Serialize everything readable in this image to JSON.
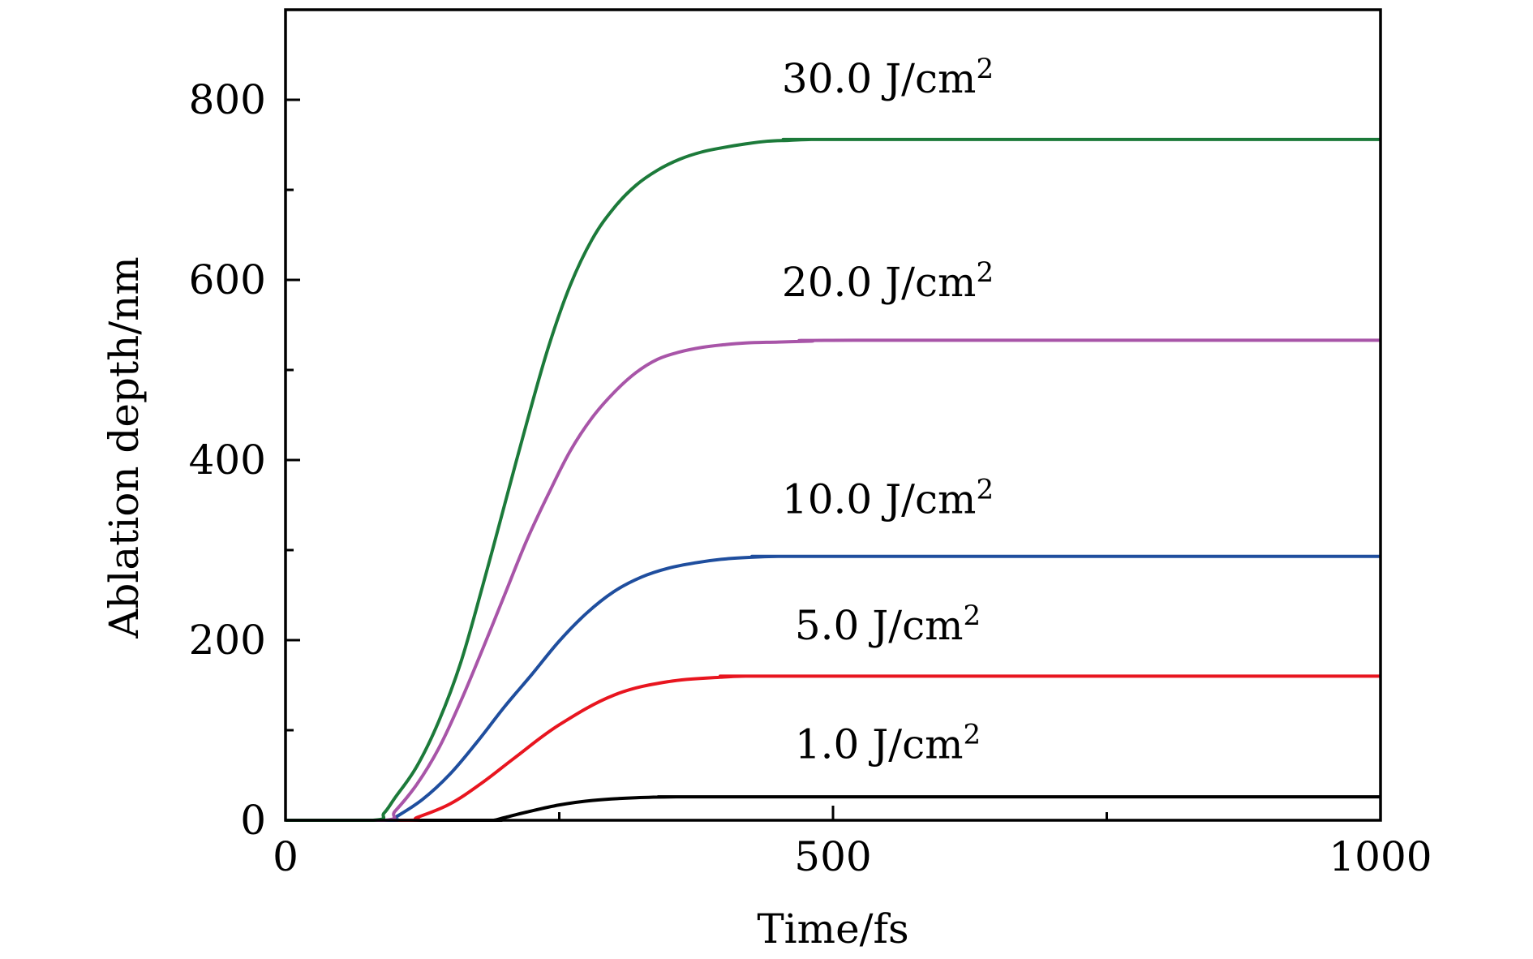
{
  "chart_data": {
    "type": "line",
    "title": "",
    "xlabel": "Time/fs",
    "ylabel": "Ablation depth/nm",
    "xlim": [
      0,
      1000
    ],
    "ylim": [
      0,
      900
    ],
    "x_ticks": [
      0,
      500,
      1000
    ],
    "x_minor_ticks": [
      250,
      750
    ],
    "y_ticks": [
      0,
      200,
      400,
      600,
      800
    ],
    "y_minor_ticks": [
      100,
      300,
      500,
      700
    ],
    "grid": false,
    "legend": "none",
    "series": [
      {
        "label": "1.0 J/cm",
        "label_sup": "2",
        "color": "#000000",
        "x": [
          0,
          180,
          190,
          200,
          220,
          250,
          280,
          320,
          360,
          400,
          1000
        ],
        "y": [
          0,
          0,
          0,
          3,
          9,
          17,
          22,
          25,
          26,
          26,
          26
        ]
      },
      {
        "label": "5.0 J/cm",
        "label_sup": "2",
        "color": "#e8151f",
        "x": [
          0,
          112,
          120,
          150,
          180,
          210,
          250,
          300,
          350,
          400,
          420,
          450,
          1000
        ],
        "y": [
          0,
          0,
          3,
          18,
          42,
          70,
          106,
          139,
          154,
          159,
          160,
          160,
          160
        ]
      },
      {
        "label": "10.0 J/cm",
        "label_sup": "2",
        "color": "#1f4e9e",
        "x": [
          0,
          95,
          100,
          125,
          150,
          175,
          200,
          225,
          250,
          275,
          300,
          325,
          350,
          375,
          400,
          425,
          450,
          475,
          1000
        ],
        "y": [
          0,
          0,
          3,
          23,
          51,
          87,
          126,
          162,
          199,
          230,
          254,
          270,
          280,
          286,
          290,
          292,
          293,
          293,
          293
        ]
      },
      {
        "label": "20.0 J/cm",
        "label_sup": "2",
        "color": "#a855a8",
        "x": [
          0,
          90,
          100,
          120,
          140,
          160,
          180,
          200,
          220,
          240,
          260,
          280,
          300,
          320,
          340,
          360,
          380,
          400,
          420,
          450,
          480,
          520,
          1000
        ],
        "y": [
          0,
          0,
          10,
          40,
          80,
          132,
          190,
          250,
          310,
          362,
          410,
          447,
          475,
          497,
          512,
          520,
          525,
          528,
          530,
          531,
          532,
          533,
          533
        ]
      },
      {
        "label": "30.0 J/cm",
        "label_sup": "2",
        "color": "#1c7a3a",
        "x": [
          0,
          80,
          90,
          100,
          120,
          140,
          160,
          180,
          200,
          220,
          240,
          260,
          280,
          300,
          320,
          340,
          360,
          380,
          400,
          420,
          440,
          460,
          480,
          500,
          1000
        ],
        "y": [
          0,
          0,
          8,
          25,
          60,
          110,
          175,
          260,
          350,
          440,
          525,
          594,
          645,
          680,
          705,
          722,
          734,
          742,
          747,
          751,
          754,
          755,
          756,
          756,
          756
        ]
      }
    ],
    "annotations": [
      {
        "series_index": 4,
        "text": "30.0 J/cm",
        "sup": "2",
        "x": 550,
        "y": 808
      },
      {
        "series_index": 3,
        "text": "20.0 J/cm",
        "sup": "2",
        "x": 550,
        "y": 582
      },
      {
        "series_index": 2,
        "text": "10.0 J/cm",
        "sup": "2",
        "x": 550,
        "y": 341
      },
      {
        "series_index": 1,
        "text": "5.0 J/cm",
        "sup": "2",
        "x": 550,
        "y": 201
      },
      {
        "series_index": 0,
        "text": "1.0 J/cm",
        "sup": "2",
        "x": 550,
        "y": 69
      }
    ]
  }
}
